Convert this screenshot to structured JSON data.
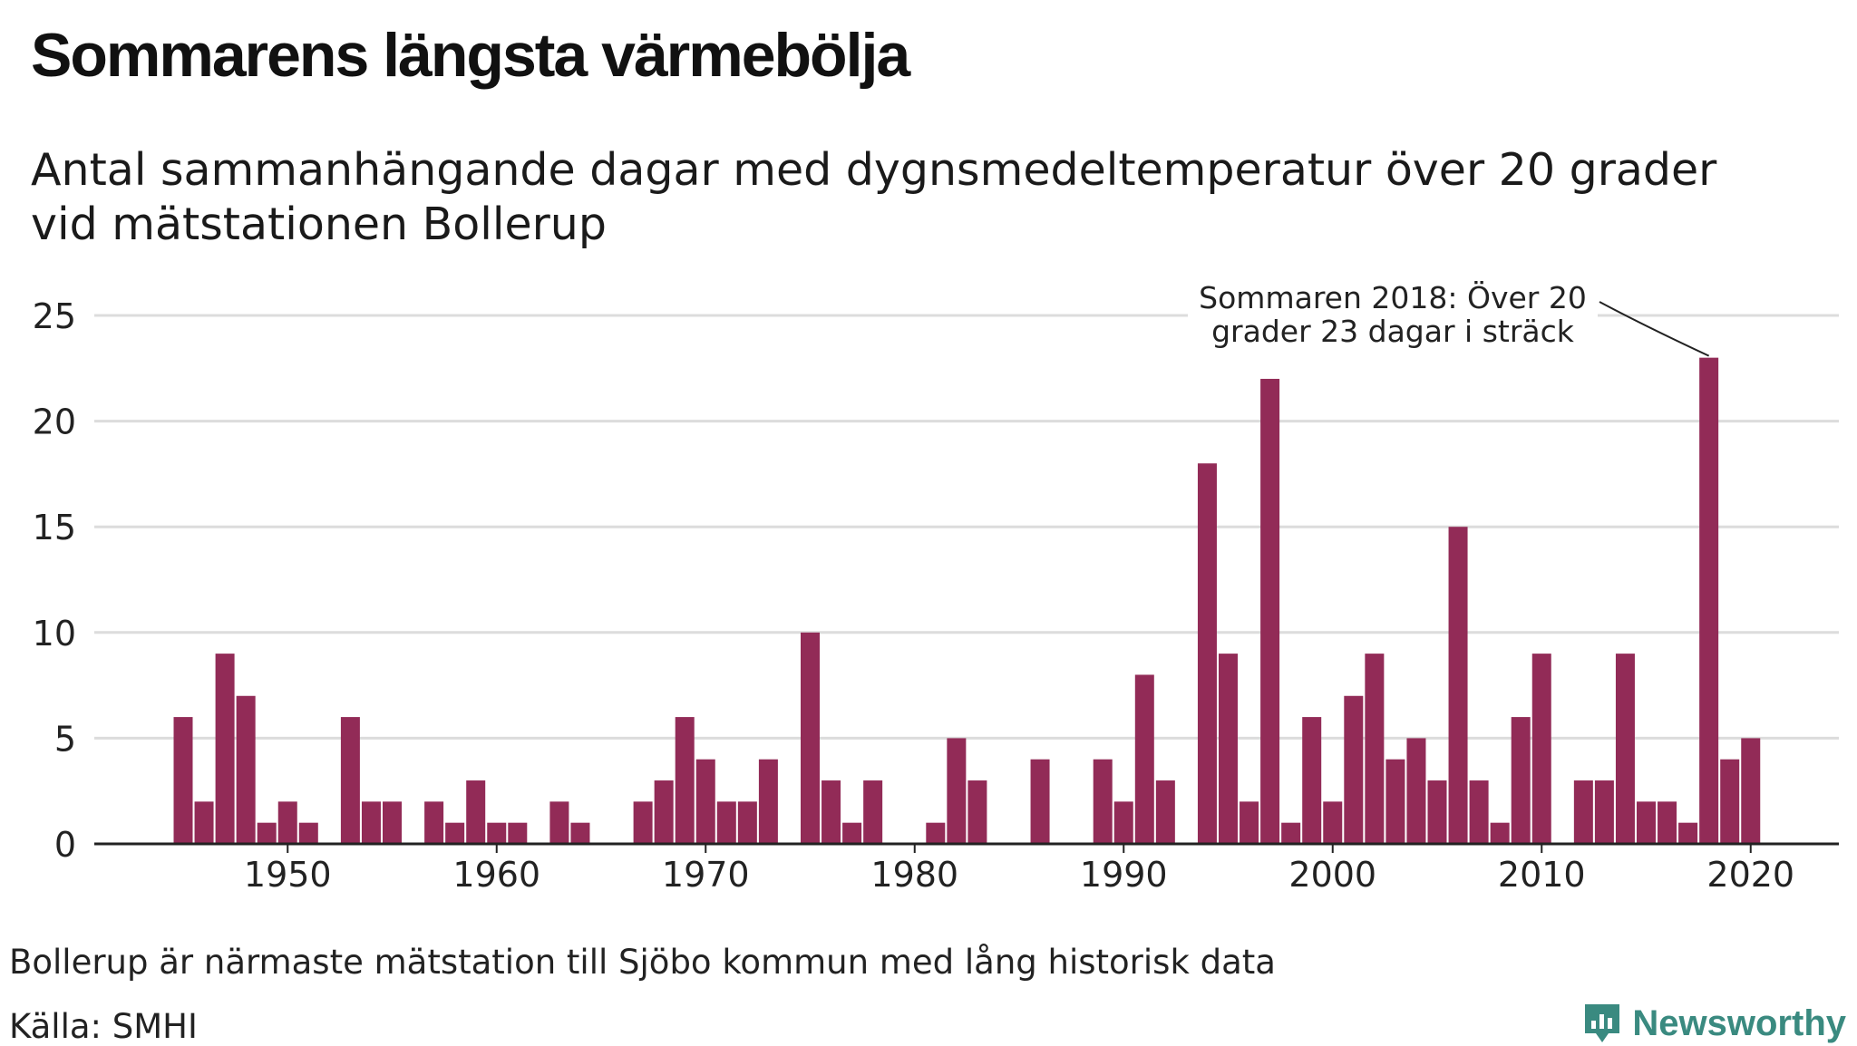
{
  "header": {
    "title": "Sommarens längsta värmebölja",
    "subtitle_line1": "Antal sammanhängande dagar med dygnsmedeltemperatur över 20 grader",
    "subtitle_line2": "vid mätstationen Bollerup"
  },
  "footer": {
    "note": "Bollerup är närmaste mätstation till Sjöbo kommun med lång historisk data",
    "source": "Källa: SMHI",
    "brand": "Newsworthy"
  },
  "colors": {
    "bar": "#922b57",
    "grid": "#dcdcdc",
    "axis": "#222222",
    "brand": "#3a8a80"
  },
  "chart_data": {
    "type": "bar",
    "x": [
      1945,
      1946,
      1947,
      1948,
      1949,
      1950,
      1951,
      1952,
      1953,
      1954,
      1955,
      1956,
      1957,
      1958,
      1959,
      1960,
      1961,
      1962,
      1963,
      1964,
      1965,
      1966,
      1967,
      1968,
      1969,
      1970,
      1971,
      1972,
      1973,
      1974,
      1975,
      1976,
      1977,
      1978,
      1979,
      1980,
      1981,
      1982,
      1983,
      1984,
      1985,
      1986,
      1987,
      1988,
      1989,
      1990,
      1991,
      1992,
      1993,
      1994,
      1995,
      1996,
      1997,
      1998,
      1999,
      2000,
      2001,
      2002,
      2003,
      2004,
      2005,
      2006,
      2007,
      2008,
      2009,
      2010,
      2011,
      2012,
      2013,
      2014,
      2015,
      2016,
      2017,
      2018,
      2019,
      2020
    ],
    "values": [
      6,
      2,
      9,
      7,
      1,
      2,
      1,
      0,
      6,
      2,
      2,
      0,
      2,
      1,
      3,
      1,
      1,
      0,
      2,
      1,
      0,
      0,
      2,
      3,
      6,
      4,
      2,
      2,
      4,
      0,
      10,
      3,
      1,
      3,
      0,
      0,
      1,
      5,
      3,
      0,
      0,
      4,
      0,
      0,
      4,
      2,
      8,
      3,
      0,
      18,
      9,
      2,
      22,
      1,
      6,
      2,
      7,
      9,
      4,
      5,
      3,
      15,
      3,
      1,
      6,
      9,
      0,
      3,
      3,
      9,
      2,
      2,
      1,
      23,
      4,
      5
    ],
    "xticks": [
      1950,
      1960,
      1970,
      1980,
      1990,
      2000,
      2010,
      2020
    ],
    "yticks": [
      0,
      5,
      10,
      15,
      20,
      25
    ],
    "ylim": [
      0,
      25
    ],
    "annotation": {
      "year": 2018,
      "lines": [
        "Sommaren 2018: Över 20",
        "grader 23 dagar i sträck"
      ]
    }
  }
}
